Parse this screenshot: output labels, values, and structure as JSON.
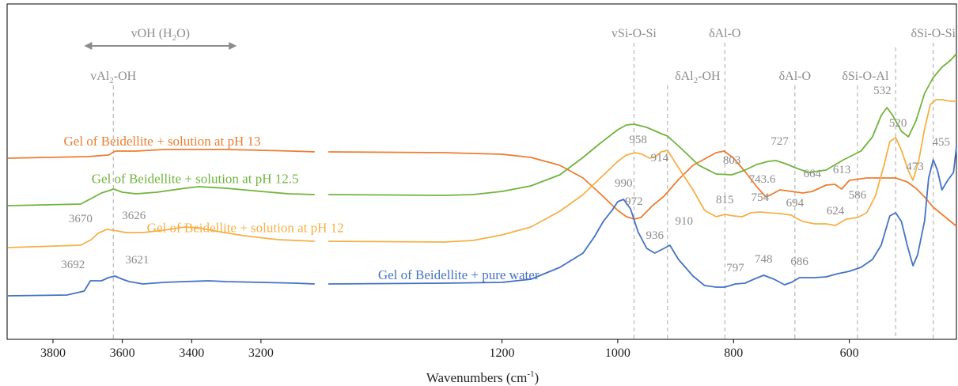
{
  "chart_data": {
    "type": "line",
    "xlabel": "Wavenumbers (cm",
    "xlabel_sup": "-1",
    "xlabel_suffix": ")",
    "x_axis_reversed": true,
    "x_axis_broken": true,
    "segments": [
      {
        "xlim": [
          3930,
          3040
        ],
        "ticks": [
          "3800",
          "3600",
          "3400",
          "3200"
        ],
        "tick_values": [
          3800,
          3600,
          3400,
          3200
        ]
      },
      {
        "xlim": [
          1500,
          415
        ],
        "ticks": [
          "1200",
          "1000",
          "800",
          "600"
        ],
        "tick_values": [
          1200,
          1000,
          800,
          600
        ]
      }
    ],
    "y_axis": {
      "ticks": false,
      "units": "arbitrary absorbance (relative, 0 = baseline)"
    },
    "series": [
      {
        "name": "Gel of Beidellite + solution at pH 13",
        "color": "#ED7D31",
        "label_x": 3485,
        "points": [
          [
            3930,
            218
          ],
          [
            3700,
            220
          ],
          [
            3640,
            222
          ],
          [
            3620,
            227
          ],
          [
            3560,
            227
          ],
          [
            3480,
            229
          ],
          [
            3300,
            229
          ],
          [
            3200,
            228
          ],
          [
            3110,
            227
          ],
          [
            3045,
            226
          ],
          [
            1500,
            226
          ],
          [
            1300,
            225
          ],
          [
            1200,
            223
          ],
          [
            1150,
            219
          ],
          [
            1100,
            209
          ],
          [
            1060,
            193
          ],
          [
            1030,
            173
          ],
          [
            1000,
            152
          ],
          [
            985,
            144
          ],
          [
            972,
            141
          ],
          [
            960,
            143
          ],
          [
            940,
            158
          ],
          [
            920,
            170
          ],
          [
            895,
            191
          ],
          [
            870,
            209
          ],
          [
            830,
            225
          ],
          [
            816,
            227
          ],
          [
            800,
            218
          ],
          [
            780,
            201
          ],
          [
            760,
            182
          ],
          [
            744,
            169
          ],
          [
            735,
            172
          ],
          [
            720,
            178
          ],
          [
            700,
            176
          ],
          [
            680,
            174
          ],
          [
            664,
            176
          ],
          [
            640,
            184
          ],
          [
            625,
            185
          ],
          [
            613,
            179
          ],
          [
            600,
            190
          ],
          [
            570,
            193
          ],
          [
            540,
            193
          ],
          [
            520,
            193
          ],
          [
            500,
            188
          ],
          [
            485,
            180
          ],
          [
            470,
            169
          ],
          [
            455,
            156
          ],
          [
            440,
            147
          ],
          [
            425,
            138
          ],
          [
            415,
            132
          ]
        ]
      },
      {
        "name": "Gel of Beidellite + solution at pH 12.5",
        "color": "#70B43C",
        "label_x": 3390,
        "points": [
          [
            3930,
            158
          ],
          [
            3720,
            160
          ],
          [
            3690,
            167
          ],
          [
            3660,
            174
          ],
          [
            3625,
            179
          ],
          [
            3600,
            175
          ],
          [
            3560,
            173
          ],
          [
            3500,
            175
          ],
          [
            3420,
            180
          ],
          [
            3380,
            182
          ],
          [
            3300,
            180
          ],
          [
            3200,
            176
          ],
          [
            3120,
            173
          ],
          [
            3045,
            172
          ],
          [
            1500,
            172
          ],
          [
            1300,
            171
          ],
          [
            1250,
            172
          ],
          [
            1200,
            176
          ],
          [
            1150,
            183
          ],
          [
            1100,
            197
          ],
          [
            1060,
            219
          ],
          [
            1030,
            237
          ],
          [
            1000,
            254
          ],
          [
            985,
            260
          ],
          [
            972,
            261
          ],
          [
            950,
            257
          ],
          [
            925,
            249
          ],
          [
            914,
            246
          ],
          [
            890,
            230
          ],
          [
            860,
            209
          ],
          [
            830,
            198
          ],
          [
            803,
            197
          ],
          [
            780,
            203
          ],
          [
            760,
            210
          ],
          [
            740,
            214
          ],
          [
            727,
            215
          ],
          [
            710,
            211
          ],
          [
            690,
            205
          ],
          [
            670,
            200
          ],
          [
            640,
            203
          ],
          [
            610,
            216
          ],
          [
            580,
            227
          ],
          [
            560,
            245
          ],
          [
            545,
            272
          ],
          [
            535,
            282
          ],
          [
            525,
            272
          ],
          [
            510,
            252
          ],
          [
            498,
            245
          ],
          [
            485,
            265
          ],
          [
            470,
            300
          ],
          [
            455,
            320
          ],
          [
            440,
            333
          ],
          [
            425,
            342
          ],
          [
            415,
            350
          ]
        ]
      },
      {
        "name": "Gel of Beidellite + solution at pH 12",
        "color": "#F5B047",
        "label_x": 3245,
        "points": [
          [
            3930,
            105
          ],
          [
            3720,
            108
          ],
          [
            3690,
            115
          ],
          [
            3670,
            123
          ],
          [
            3645,
            128
          ],
          [
            3626,
            127
          ],
          [
            3590,
            124
          ],
          [
            3540,
            124
          ],
          [
            3480,
            127
          ],
          [
            3420,
            131
          ],
          [
            3380,
            130
          ],
          [
            3320,
            125
          ],
          [
            3250,
            120
          ],
          [
            3150,
            115
          ],
          [
            3045,
            113
          ],
          [
            1500,
            113
          ],
          [
            1300,
            112
          ],
          [
            1250,
            114
          ],
          [
            1200,
            121
          ],
          [
            1150,
            131
          ],
          [
            1100,
            151
          ],
          [
            1060,
            172
          ],
          [
            1040,
            186
          ],
          [
            1020,
            200
          ],
          [
            1000,
            214
          ],
          [
            985,
            222
          ],
          [
            970,
            225
          ],
          [
            958,
            223
          ],
          [
            945,
            218
          ],
          [
            935,
            220
          ],
          [
            925,
            226
          ],
          [
            914,
            228
          ],
          [
            895,
            206
          ],
          [
            870,
            178
          ],
          [
            850,
            152
          ],
          [
            830,
            144
          ],
          [
            815,
            147
          ],
          [
            800,
            145
          ],
          [
            785,
            144
          ],
          [
            770,
            149
          ],
          [
            754,
            150
          ],
          [
            740,
            149
          ],
          [
            720,
            148
          ],
          [
            700,
            146
          ],
          [
            694,
            143
          ],
          [
            680,
            138
          ],
          [
            660,
            135
          ],
          [
            640,
            135
          ],
          [
            624,
            133
          ],
          [
            605,
            141
          ],
          [
            586,
            143
          ],
          [
            570,
            149
          ],
          [
            555,
            170
          ],
          [
            540,
            209
          ],
          [
            530,
            239
          ],
          [
            520,
            244
          ],
          [
            510,
            228
          ],
          [
            498,
            202
          ],
          [
            490,
            190
          ],
          [
            480,
            215
          ],
          [
            470,
            255
          ],
          [
            460,
            286
          ],
          [
            450,
            292
          ],
          [
            440,
            292
          ],
          [
            425,
            290
          ],
          [
            415,
            290
          ]
        ]
      },
      {
        "name": "Gel of Beidellite + pure water",
        "color": "#4472C4",
        "label_x": 1275,
        "points": [
          [
            3930,
            44
          ],
          [
            3760,
            45
          ],
          [
            3710,
            50
          ],
          [
            3692,
            63
          ],
          [
            3660,
            63
          ],
          [
            3640,
            67
          ],
          [
            3621,
            69
          ],
          [
            3600,
            65
          ],
          [
            3580,
            62
          ],
          [
            3540,
            59
          ],
          [
            3480,
            61
          ],
          [
            3420,
            62
          ],
          [
            3350,
            63
          ],
          [
            3300,
            62
          ],
          [
            3200,
            61
          ],
          [
            3100,
            60
          ],
          [
            3045,
            59
          ],
          [
            1500,
            59
          ],
          [
            1300,
            60
          ],
          [
            1200,
            61
          ],
          [
            1150,
            65
          ],
          [
            1100,
            80
          ],
          [
            1060,
            98
          ],
          [
            1040,
            119
          ],
          [
            1025,
            138
          ],
          [
            1010,
            152
          ],
          [
            1000,
            163
          ],
          [
            990,
            166
          ],
          [
            978,
            154
          ],
          [
            965,
            125
          ],
          [
            950,
            104
          ],
          [
            936,
            98
          ],
          [
            920,
            104
          ],
          [
            910,
            108
          ],
          [
            895,
            90
          ],
          [
            870,
            69
          ],
          [
            850,
            57
          ],
          [
            830,
            55
          ],
          [
            815,
            55
          ],
          [
            797,
            59
          ],
          [
            780,
            60
          ],
          [
            765,
            65
          ],
          [
            748,
            70
          ],
          [
            730,
            65
          ],
          [
            712,
            58
          ],
          [
            700,
            61
          ],
          [
            686,
            67
          ],
          [
            660,
            67
          ],
          [
            640,
            68
          ],
          [
            620,
            72
          ],
          [
            600,
            75
          ],
          [
            580,
            80
          ],
          [
            560,
            90
          ],
          [
            545,
            108
          ],
          [
            530,
            145
          ],
          [
            520,
            149
          ],
          [
            510,
            138
          ],
          [
            500,
            108
          ],
          [
            490,
            82
          ],
          [
            482,
            96
          ],
          [
            470,
            139
          ],
          [
            463,
            193
          ],
          [
            455,
            216
          ],
          [
            448,
            203
          ],
          [
            440,
            178
          ],
          [
            430,
            190
          ],
          [
            420,
            200
          ],
          [
            415,
            232
          ]
        ]
      }
    ],
    "peak_labels": [
      {
        "text": "972",
        "x": 972,
        "series": 0,
        "dy": -18,
        "dx": 0
      },
      {
        "text": "743.6",
        "x": 743.6,
        "series": 0,
        "dy": -18,
        "dx": -5
      },
      {
        "text": "664",
        "x": 664,
        "series": 0,
        "dy": -18,
        "dx": 0
      },
      {
        "text": "613",
        "x": 613,
        "series": 0,
        "dy": -20,
        "dx": 0
      },
      {
        "text": "532",
        "x": 532,
        "series": 1,
        "dy": -20,
        "dx": -8
      },
      {
        "text": "473",
        "x": 473,
        "series": 0,
        "dy": -32,
        "dx": -10
      },
      {
        "text": "803",
        "x": 803,
        "series": 1,
        "dy": -14,
        "dx": 0
      },
      {
        "text": "727",
        "x": 727,
        "series": 1,
        "dy": -20,
        "dx": 5
      },
      {
        "text": "958",
        "x": 958,
        "series": 2,
        "dy": -14,
        "dx": -5
      },
      {
        "text": "914",
        "x": 914,
        "series": 2,
        "dy": 14,
        "dx": -10
      },
      {
        "text": "520",
        "x": 520,
        "series": 2,
        "dy": -14,
        "dx": 3
      },
      {
        "text": "455",
        "x": 455,
        "series": 3,
        "dy": -18,
        "dx": 10
      },
      {
        "text": "815",
        "x": 815,
        "series": 2,
        "dy": -14,
        "dx": 0
      },
      {
        "text": "754",
        "x": 754,
        "series": 2,
        "dy": -14,
        "dx": 0
      },
      {
        "text": "694",
        "x": 694,
        "series": 2,
        "dy": -14,
        "dx": 0
      },
      {
        "text": "624",
        "x": 624,
        "series": 2,
        "dy": -14,
        "dx": 0
      },
      {
        "text": "586",
        "x": 586,
        "series": 2,
        "dy": -24,
        "dx": 0
      },
      {
        "text": "3670",
        "x": 3670,
        "series": 2,
        "dy": -14,
        "dx": -22
      },
      {
        "text": "3626",
        "x": 3626,
        "series": 2,
        "dy": -14,
        "dx": 26
      },
      {
        "text": "990",
        "x": 990,
        "series": 3,
        "dy": -16,
        "dx": 0
      },
      {
        "text": "936",
        "x": 936,
        "series": 3,
        "dy": -18,
        "dx": 0
      },
      {
        "text": "910",
        "x": 910,
        "series": 3,
        "dy": -26,
        "dx": 18
      },
      {
        "text": "797",
        "x": 797,
        "series": 3,
        "dy": -16,
        "dx": 0
      },
      {
        "text": "748",
        "x": 748,
        "series": 3,
        "dy": -16,
        "dx": 0
      },
      {
        "text": "686",
        "x": 686,
        "series": 3,
        "dy": -16,
        "dx": 0
      },
      {
        "text": "3692",
        "x": 3692,
        "series": 3,
        "dy": -16,
        "dx": -22
      },
      {
        "text": "3621",
        "x": 3621,
        "series": 3,
        "dy": -16,
        "dx": 28
      }
    ],
    "assignments": [
      {
        "text": "vAl",
        "sub": "2",
        "tail": "-OH",
        "x": 3626,
        "line": true,
        "row": 1
      },
      {
        "text": "vSi-O-Si",
        "sub": "",
        "tail": "",
        "x": 972,
        "line": true,
        "row": 0
      },
      {
        "text": "δAl",
        "sub": "2",
        "tail": "-OH",
        "x": 914,
        "line": true,
        "row": 1,
        "dx": 38
      },
      {
        "text": "δAl-O",
        "sub": "",
        "tail": "",
        "x": 815,
        "line": true,
        "row": 0
      },
      {
        "text": "δAl-O",
        "sub": "",
        "tail": "",
        "x": 694,
        "line": true,
        "row": 1
      },
      {
        "text": "δSi-O-Al",
        "sub": "",
        "tail": "",
        "x": 586,
        "line": true,
        "row": 1,
        "dx": 10
      },
      {
        "text": "δSi-O-Si",
        "sub": "",
        "tail": "",
        "x": 455,
        "line": true,
        "row": 0
      },
      {
        "text": "",
        "sub": "",
        "tail": "",
        "x": 520,
        "line": true,
        "row": 2
      }
    ],
    "range_annotation": {
      "text": "vOH (H",
      "sub": "2",
      "tail": "O)",
      "x_from": 3710,
      "x_to": 3270,
      "color": "#8c8c8c"
    }
  }
}
